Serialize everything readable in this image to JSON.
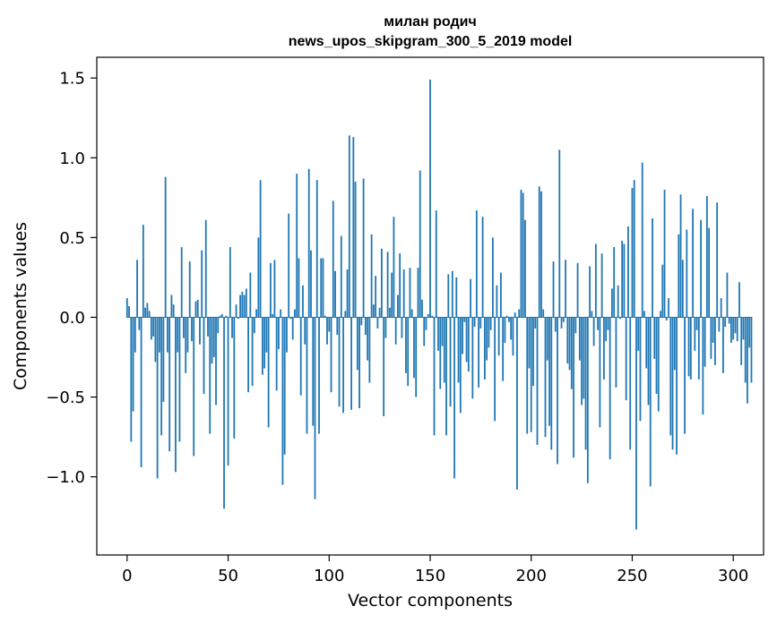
{
  "chart_data": {
    "type": "bar",
    "title_line1": "милан родич",
    "title_line2": "news_upos_skipgram_300_5_2019 model",
    "xlabel": "Vector components",
    "ylabel": "Components values",
    "xlim": [
      -15,
      315
    ],
    "ylim": [
      -1.49,
      1.63
    ],
    "xticks": [
      0,
      50,
      100,
      150,
      200,
      250,
      300
    ],
    "xtick_labels": [
      "0",
      "50",
      "100",
      "150",
      "200",
      "250",
      "300"
    ],
    "yticks": [
      -1.0,
      -0.5,
      0.0,
      0.5,
      1.0,
      1.5
    ],
    "ytick_labels": [
      "−1.0",
      "−0.5",
      "0.0",
      "0.5",
      "1.0",
      "1.5"
    ],
    "bar_color": "#1f77b4",
    "x_start": 0,
    "values": [
      0.12,
      0.07,
      -0.78,
      -0.59,
      -0.22,
      0.36,
      -0.08,
      -0.94,
      0.58,
      0.06,
      0.09,
      0.04,
      -0.14,
      -0.12,
      -0.28,
      -1.01,
      -0.22,
      -0.74,
      -0.53,
      0.88,
      -0.22,
      -0.84,
      0.14,
      0.08,
      -0.97,
      -0.22,
      -0.78,
      0.44,
      -0.13,
      -0.35,
      -0.22,
      0.35,
      -0.15,
      -0.87,
      0.1,
      0.11,
      -0.17,
      0.42,
      -0.48,
      0.61,
      -0.12,
      -0.73,
      -0.29,
      -0.25,
      -0.55,
      -0.1,
      0.01,
      0.02,
      -1.2,
      0.01,
      -0.93,
      0.44,
      -0.13,
      -0.76,
      0.08,
      -0.01,
      0.14,
      0.16,
      0.14,
      0.18,
      -0.47,
      0.28,
      -0.43,
      -0.1,
      0.05,
      0.5,
      0.86,
      -0.36,
      -0.32,
      -0.22,
      -0.69,
      0.34,
      0.02,
      0.36,
      -0.46,
      -0.2,
      0.05,
      -1.05,
      -0.86,
      -0.22,
      0.65,
      -0.01,
      -0.14,
      0.05,
      0.9,
      0.37,
      -0.49,
      0.2,
      -0.17,
      -0.73,
      0.93,
      0.42,
      -0.68,
      -1.14,
      0.86,
      -0.73,
      0.37,
      0.37,
      0.01,
      -0.17,
      -0.09,
      -0.47,
      0.73,
      0.29,
      -0.11,
      -0.56,
      0.51,
      -0.6,
      0.04,
      0.3,
      1.14,
      -0.58,
      1.13,
      0.85,
      -0.33,
      -0.57,
      -0.05,
      0.87,
      -0.11,
      -0.27,
      -0.41,
      0.52,
      0.08,
      0.26,
      -0.07,
      0.06,
      0.43,
      -0.62,
      -0.13,
      0.41,
      0.06,
      0.28,
      0.63,
      -0.17,
      0.14,
      0.4,
      -0.13,
      0.3,
      -0.35,
      -0.43,
      0.31,
      0.05,
      -0.38,
      -0.5,
      0.31,
      0.92,
      0.11,
      -0.18,
      -0.08,
      0.02,
      1.49,
      0.01,
      -0.74,
      0.67,
      -0.21,
      -0.45,
      -0.18,
      -0.41,
      -0.74,
      0.27,
      -0.56,
      0.29,
      -1.01,
      0.25,
      -0.41,
      -0.6,
      -0.23,
      -0.03,
      -0.28,
      -0.34,
      0.24,
      -0.51,
      -0.06,
      0.67,
      -0.44,
      -0.07,
      0.63,
      -0.39,
      -0.27,
      -0.19,
      -0.08,
      0.5,
      -0.65,
      0.2,
      -0.24,
      0.28,
      -0.4,
      -0.16,
      0.01,
      -0.03,
      -0.14,
      -0.24,
      0.03,
      -1.08,
      0.05,
      0.8,
      0.78,
      0.61,
      -0.73,
      -0.32,
      -0.72,
      -0.43,
      -0.07,
      -0.8,
      0.82,
      0.79,
      0.05,
      -0.75,
      -0.27,
      -0.68,
      -0.83,
      0.35,
      -0.09,
      -0.92,
      1.05,
      -0.07,
      -0.03,
      0.36,
      -0.29,
      -0.33,
      -0.45,
      -0.88,
      -0.1,
      0.34,
      -0.27,
      -0.55,
      -0.51,
      -0.83,
      -1.04,
      0.32,
      0.04,
      -0.18,
      0.46,
      -0.08,
      -0.69,
      0.4,
      -0.39,
      -0.15,
      -0.08,
      -0.89,
      0.18,
      0.44,
      -0.44,
      0.2,
      -0.01,
      0.48,
      0.46,
      -0.52,
      0.57,
      -0.83,
      0.81,
      0.86,
      -1.33,
      -0.21,
      -0.65,
      0.97,
      0.04,
      -0.32,
      -0.55,
      -1.06,
      0.62,
      -0.26,
      -0.48,
      -0.59,
      0.04,
      0.33,
      0.8,
      -0.02,
      0.12,
      -0.74,
      -0.83,
      -0.33,
      -0.86,
      0.52,
      0.77,
      0.36,
      -0.73,
      0.55,
      -0.37,
      -0.39,
      0.68,
      -0.21,
      -0.08,
      -0.39,
      0.61,
      -0.61,
      -0.31,
      0.76,
      0.56,
      -0.26,
      -0.16,
      -0.3,
      0.72,
      -0.09,
      0.12,
      -0.35,
      -0.06,
      0.28,
      -0.04,
      -0.16,
      -0.14,
      -0.1,
      -0.15,
      0.22,
      -0.3,
      -0.14,
      -0.41,
      -0.54,
      -0.19,
      -0.41
    ]
  }
}
